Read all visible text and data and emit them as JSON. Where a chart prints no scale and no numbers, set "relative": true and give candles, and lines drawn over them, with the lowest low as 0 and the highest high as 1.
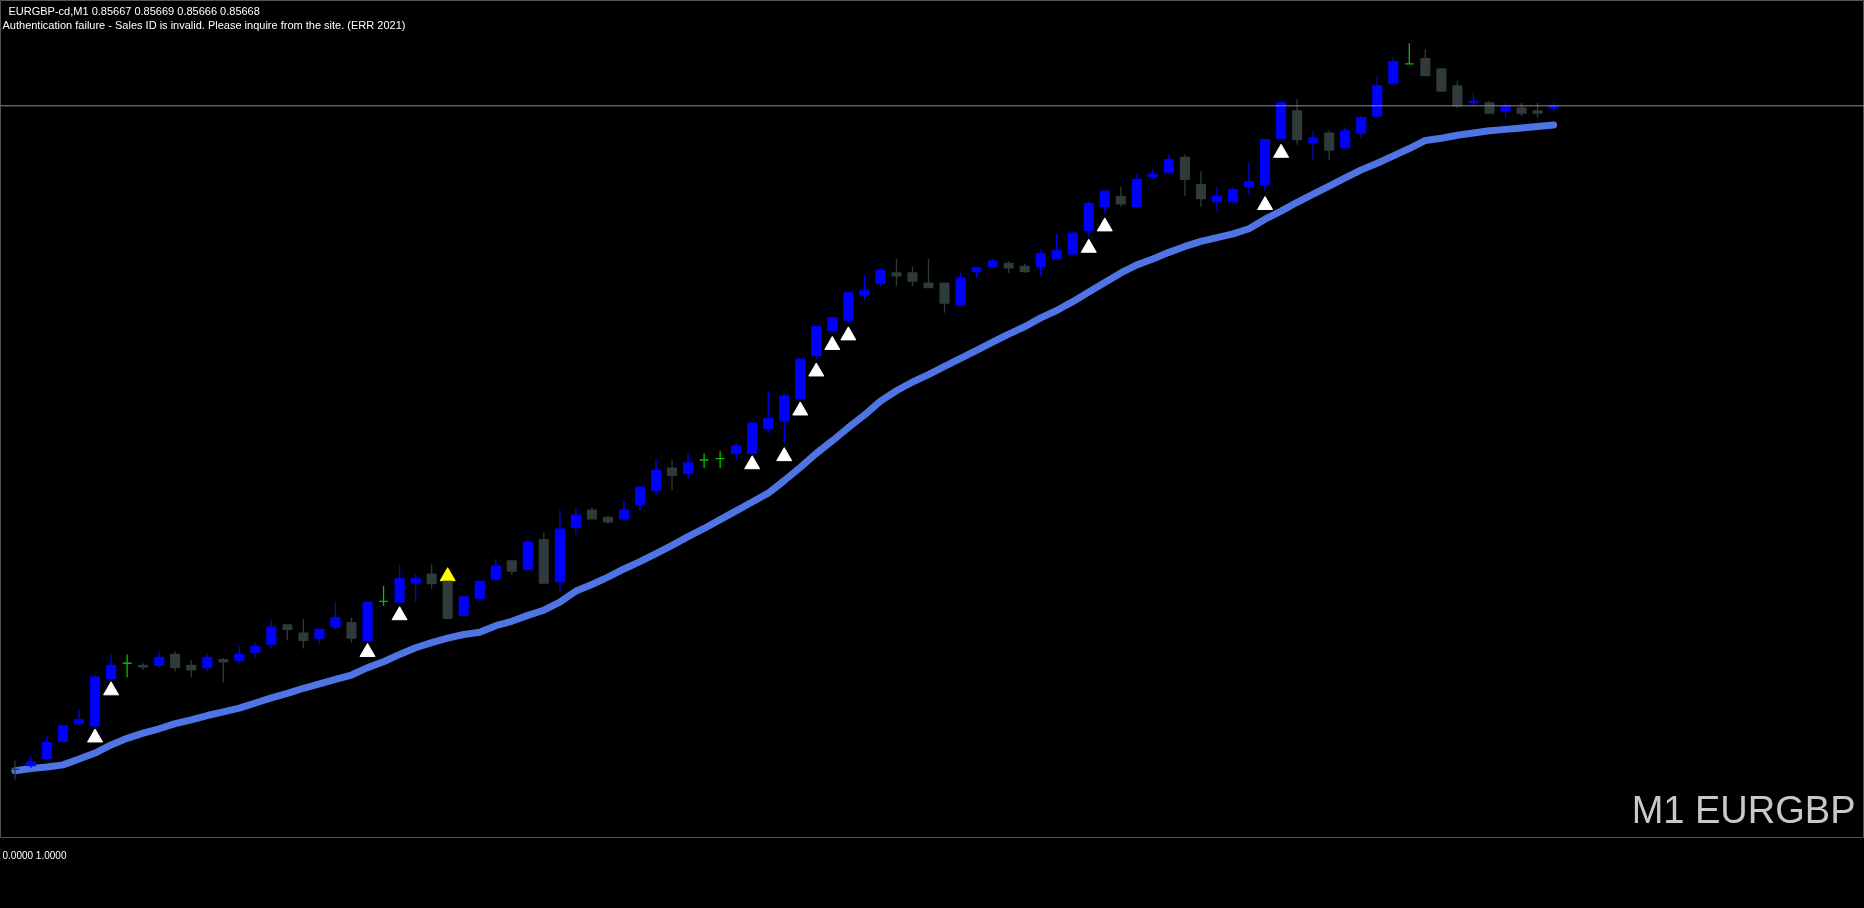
{
  "chart_data": [
    {
      "type": "candlestick",
      "title": "EURGBP-cd,M1  0.85667 0.85669 0.85666 0.85668",
      "subtitle": "Authentication failure - Sales ID is invalid. Please inquire from the site. (ERR 2021)",
      "annotations": [
        "M1 EURGBP"
      ],
      "relative": true,
      "categories": [
        null,
        null,
        null,
        null,
        null,
        null,
        null,
        null,
        null,
        null,
        null,
        null,
        null,
        null,
        null,
        null,
        null,
        null,
        null,
        null,
        null,
        null,
        null,
        null,
        null,
        null,
        null,
        null,
        null,
        null,
        null,
        null,
        null,
        null,
        null,
        null,
        null,
        null,
        null,
        null,
        null,
        null,
        null,
        null,
        null,
        null,
        null,
        null,
        null,
        null,
        null,
        null,
        null,
        null,
        null,
        null,
        null,
        null,
        null,
        null,
        null,
        null,
        null,
        null,
        null,
        null,
        null,
        null,
        null,
        null,
        null,
        null,
        null,
        null,
        null,
        null,
        null,
        null,
        null,
        null,
        null,
        null,
        null,
        null,
        null,
        null,
        null,
        null,
        null,
        null,
        null,
        null,
        null,
        null,
        null,
        null,
        null
      ],
      "ohlc": [
        [
          0.014,
          0.026,
          0,
          0.014
        ],
        [
          0.019,
          0.032,
          0.016,
          0.024
        ],
        [
          0.029,
          0.06,
          0.027,
          0.05
        ],
        [
          0.052,
          0.073,
          0.05,
          0.073
        ],
        [
          0.076,
          0.095,
          0.074,
          0.081
        ],
        [
          0.073,
          0.142,
          0.07,
          0.139
        ],
        [
          0.137,
          0.17,
          0.135,
          0.155
        ],
        [
          0.158,
          0.17,
          0.139,
          0.158
        ],
        [
          0.155,
          0.158,
          0.149,
          0.153
        ],
        [
          0.155,
          0.174,
          0.152,
          0.166
        ],
        [
          0.17,
          0.174,
          0.147,
          0.152
        ],
        [
          0.155,
          0.162,
          0.139,
          0.149
        ],
        [
          0.152,
          0.171,
          0.147,
          0.166
        ],
        [
          0.163,
          0.165,
          0.132,
          0.16
        ],
        [
          0.162,
          0.181,
          0.158,
          0.17
        ],
        [
          0.173,
          0.186,
          0.166,
          0.181
        ],
        [
          0.184,
          0.218,
          0.178,
          0.207
        ],
        [
          0.21,
          0.21,
          0.189,
          0.204
        ],
        [
          0.199,
          0.218,
          0.178,
          0.189
        ],
        [
          0.192,
          0.204,
          0.183,
          0.204
        ],
        [
          0.207,
          0.242,
          0.204,
          0.22
        ],
        [
          0.213,
          0.22,
          0.186,
          0.192
        ],
        [
          0.189,
          0.241,
          0.189,
          0.241
        ],
        [
          0.242,
          0.263,
          0.236,
          0.242
        ],
        [
          0.241,
          0.291,
          0.241,
          0.273
        ],
        [
          0.267,
          0.279,
          0.241,
          0.273
        ],
        [
          0.279,
          0.292,
          0.259,
          0.266
        ],
        [
          0.269,
          0.269,
          0.219,
          0.219
        ],
        [
          0.223,
          0.248,
          0.223,
          0.248
        ],
        [
          0.246,
          0.269,
          0.242,
          0.269
        ],
        [
          0.272,
          0.3,
          0.269,
          0.29
        ],
        [
          0.297,
          0.297,
          0.278,
          0.283
        ],
        [
          0.286,
          0.326,
          0.286,
          0.322
        ],
        [
          0.326,
          0.336,
          0.267,
          0.267
        ],
        [
          0.269,
          0.366,
          0.255,
          0.34
        ],
        [
          0.343,
          0.37,
          0.333,
          0.359
        ],
        [
          0.366,
          0.37,
          0.354,
          0.354
        ],
        [
          0.356,
          0.359,
          0.347,
          0.35
        ],
        [
          0.354,
          0.379,
          0.35,
          0.366
        ],
        [
          0.373,
          0.397,
          0.366,
          0.397
        ],
        [
          0.393,
          0.436,
          0.386,
          0.42
        ],
        [
          0.423,
          0.434,
          0.393,
          0.413
        ],
        [
          0.416,
          0.443,
          0.409,
          0.43
        ],
        [
          0.434,
          0.443,
          0.423,
          0.434
        ],
        [
          0.436,
          0.446,
          0.423,
          0.436
        ],
        [
          0.443,
          0.457,
          0.434,
          0.453
        ],
        [
          0.443,
          0.484,
          0.443,
          0.484
        ],
        [
          0.477,
          0.528,
          0.471,
          0.49
        ],
        [
          0.487,
          0.524,
          0.457,
          0.521
        ],
        [
          0.517,
          0.571,
          0.517,
          0.571
        ],
        [
          0.576,
          0.615,
          0.571,
          0.615
        ],
        [
          0.61,
          0.627,
          0.607,
          0.627
        ],
        [
          0.624,
          0.661,
          0.62,
          0.661
        ],
        [
          0.658,
          0.684,
          0.651,
          0.664
        ],
        [
          0.674,
          0.695,
          0.67,
          0.691
        ],
        [
          0.688,
          0.707,
          0.67,
          0.684
        ],
        [
          0.688,
          0.697,
          0.67,
          0.677
        ],
        [
          0.674,
          0.707,
          0.668,
          0.668
        ],
        [
          0.674,
          0.674,
          0.634,
          0.647
        ],
        [
          0.645,
          0.688,
          0.645,
          0.681
        ],
        [
          0.69,
          0.697,
          0.681,
          0.695
        ],
        [
          0.697,
          0.707,
          0.695,
          0.704
        ],
        [
          0.701,
          0.704,
          0.688,
          0.695
        ],
        [
          0.697,
          0.701,
          0.688,
          0.69
        ],
        [
          0.697,
          0.72,
          0.684,
          0.714
        ],
        [
          0.707,
          0.741,
          0.707,
          0.718
        ],
        [
          0.714,
          0.742,
          0.714,
          0.742
        ],
        [
          0.746,
          0.785,
          0.739,
          0.782
        ],
        [
          0.778,
          0.799,
          0.769,
          0.799
        ],
        [
          0.792,
          0.805,
          0.778,
          0.782
        ],
        [
          0.778,
          0.822,
          0.777,
          0.815
        ],
        [
          0.819,
          0.829,
          0.815,
          0.822
        ],
        [
          0.825,
          0.849,
          0.822,
          0.842
        ],
        [
          0.845,
          0.849,
          0.793,
          0.815
        ],
        [
          0.808,
          0.826,
          0.778,
          0.789
        ],
        [
          0.785,
          0.805,
          0.771,
          0.792
        ],
        [
          0.785,
          0.805,
          0.782,
          0.801
        ],
        [
          0.805,
          0.838,
          0.795,
          0.812
        ],
        [
          0.808,
          0.869,
          0.799,
          0.869
        ],
        [
          0.871,
          0.922,
          0.869,
          0.919
        ],
        [
          0.908,
          0.924,
          0.862,
          0.869
        ],
        [
          0.865,
          0.881,
          0.841,
          0.871
        ],
        [
          0.878,
          0.881,
          0.841,
          0.855
        ],
        [
          0.858,
          0.885,
          0.858,
          0.881
        ],
        [
          0.878,
          0.901,
          0.871,
          0.899
        ],
        [
          0.901,
          0.956,
          0.899,
          0.942
        ],
        [
          0.945,
          0.981,
          0.945,
          0.975
        ],
        [
          0.972,
          1,
          0.972,
          0.972
        ],
        [
          0.979,
          0.992,
          0.956,
          0.956
        ],
        [
          0.965,
          0.965,
          0.935,
          0.935
        ],
        [
          0.942,
          0.949,
          0.912,
          0.915
        ],
        [
          0.919,
          0.932,
          0.915,
          0.921
        ],
        [
          0.919,
          0.922,
          0.905,
          0.905
        ],
        [
          0.908,
          0.919,
          0.899,
          0.915
        ],
        [
          0.912,
          0.919,
          0.901,
          0.905
        ],
        [
          0.908,
          0.919,
          0.899,
          0.905
        ],
        [
          0.912,
          0.919,
          0.908,
          0.915
        ]
      ],
      "colors": [
        "#2f3b3b",
        "#0000ff",
        "#0000ff",
        "#0000ff",
        "#0000ff",
        "#0000ff",
        "#0000ff",
        "#00c000",
        "#2f3b3b",
        "#0000ff",
        "#2f3b3b",
        "#2f3b3b",
        "#0000ff",
        "#2f3b3b",
        "#0000ff",
        "#0000ff",
        "#0000ff",
        "#2f3b3b",
        "#2f3b3b",
        "#0000ff",
        "#0000ff",
        "#2f3b3b",
        "#0000ff",
        "#00c000",
        "#0000ff",
        "#0000ff",
        "#2f3b3b",
        "#2f3b3b",
        "#0000ff",
        "#0000ff",
        "#0000ff",
        "#2f3b3b",
        "#0000ff",
        "#2f3b3b",
        "#0000ff",
        "#0000ff",
        "#2f3b3b",
        "#2f3b3b",
        "#0000ff",
        "#0000ff",
        "#0000ff",
        "#2f3b3b",
        "#0000ff",
        "#00c000",
        "#00c000",
        "#0000ff",
        "#0000ff",
        "#0000ff",
        "#0000ff",
        "#0000ff",
        "#0000ff",
        "#0000ff",
        "#0000ff",
        "#0000ff",
        "#0000ff",
        "#2f3b3b",
        "#2f3b3b",
        "#2f3b3b",
        "#2f3b3b",
        "#0000ff",
        "#0000ff",
        "#0000ff",
        "#2f3b3b",
        "#2f3b3b",
        "#0000ff",
        "#0000ff",
        "#0000ff",
        "#0000ff",
        "#0000ff",
        "#2f3b3b",
        "#0000ff",
        "#0000ff",
        "#0000ff",
        "#2f3b3b",
        "#2f3b3b",
        "#0000ff",
        "#0000ff",
        "#0000ff",
        "#0000ff",
        "#0000ff",
        "#2f3b3b",
        "#0000ff",
        "#2f3b3b",
        "#0000ff",
        "#0000ff",
        "#0000ff",
        "#0000ff",
        "#00c000",
        "#2f3b3b",
        "#2f3b3b",
        "#2f3b3b",
        "#0000ff",
        "#2f3b3b",
        "#0000ff",
        "#2f3b3b",
        "#2f3b3b",
        "#0000ff"
      ],
      "ref_lines": [
        {
          "axis": "y",
          "value": 0.915,
          "color": "#8c8c8c",
          "line_style": "solid"
        }
      ],
      "series": [
        {
          "type": "line",
          "color": "#4f74e3",
          "line_style": "solid",
          "values": [
            0.012,
            0.015,
            0.017,
            0.02,
            0.028,
            0.036,
            0.047,
            0.056,
            0.063,
            0.069,
            0.076,
            0.081,
            0.087,
            0.092,
            0.097,
            0.104,
            0.111,
            0.117,
            0.124,
            0.13,
            0.136,
            0.142,
            0.152,
            0.16,
            0.17,
            0.179,
            0.186,
            0.192,
            0.197,
            0.2,
            0.209,
            0.215,
            0.223,
            0.23,
            0.241,
            0.256,
            0.265,
            0.275,
            0.286,
            0.296,
            0.307,
            0.318,
            0.33,
            0.341,
            0.353,
            0.365,
            0.377,
            0.389,
            0.406,
            0.424,
            0.443,
            0.46,
            0.478,
            0.495,
            0.514,
            0.528,
            0.54,
            0.55,
            0.561,
            0.572,
            0.583,
            0.594,
            0.605,
            0.615,
            0.627,
            0.637,
            0.649,
            0.662,
            0.675,
            0.688,
            0.699,
            0.707,
            0.716,
            0.724,
            0.731,
            0.736,
            0.741,
            0.748,
            0.761,
            0.772,
            0.784,
            0.795,
            0.806,
            0.817,
            0.828,
            0.837,
            0.847,
            0.857,
            0.868,
            0.871,
            0.875,
            0.878,
            0.881,
            0.883,
            0.885,
            0.887,
            0.889
          ]
        },
        {
          "type": "scatter",
          "color": "#ffffff",
          "marker": "triangle",
          "values": [
            null,
            null,
            null,
            null,
            null,
            0.057,
            0.121,
            null,
            null,
            null,
            null,
            null,
            null,
            null,
            null,
            null,
            null,
            null,
            null,
            null,
            null,
            null,
            0.173,
            null,
            0.223,
            null,
            null,
            null,
            null,
            null,
            null,
            null,
            null,
            null,
            null,
            null,
            null,
            null,
            null,
            null,
            null,
            null,
            null,
            null,
            null,
            null,
            0.428,
            null,
            0.439,
            0.501,
            0.554,
            0.59,
            0.603,
            null,
            null,
            null,
            null,
            null,
            null,
            null,
            null,
            null,
            null,
            null,
            null,
            null,
            null,
            0.722,
            0.751,
            null,
            null,
            null,
            null,
            null,
            null,
            null,
            null,
            null,
            0.78,
            0.851,
            null,
            null,
            null,
            null,
            null,
            null,
            null,
            null,
            null,
            null,
            null,
            null,
            null,
            null,
            null,
            null,
            null
          ]
        },
        {
          "type": "scatter",
          "color": "#ffff00",
          "marker": "triangle",
          "values": [
            null,
            null,
            null,
            null,
            null,
            null,
            null,
            null,
            null,
            null,
            null,
            null,
            null,
            null,
            null,
            null,
            null,
            null,
            null,
            null,
            null,
            null,
            null,
            null,
            null,
            null,
            null,
            0.276,
            null,
            null,
            null,
            null,
            null,
            null,
            null,
            null,
            null,
            null,
            null,
            null,
            null,
            null,
            null,
            null,
            null,
            null,
            null,
            null,
            null,
            null,
            null,
            null,
            null,
            null,
            null,
            null,
            null,
            null,
            null,
            null,
            null,
            null,
            null,
            null,
            null,
            null,
            null,
            null,
            null,
            null,
            null,
            null,
            null,
            null,
            null,
            null,
            null,
            null,
            null,
            null,
            null,
            null,
            null,
            null,
            null,
            null,
            null,
            null,
            null,
            null,
            null,
            null,
            null,
            null,
            null,
            null,
            null
          ]
        }
      ]
    },
    {
      "type": "other",
      "title": "0.0000 1.0000"
    }
  ]
}
